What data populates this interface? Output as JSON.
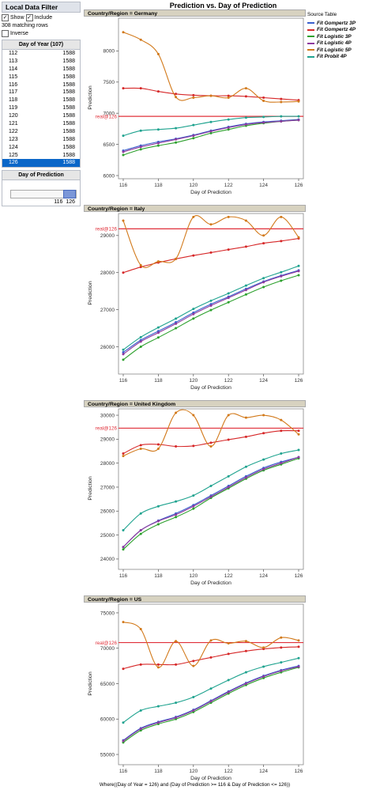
{
  "filter": {
    "title": "Local Data Filter",
    "show_label": "Show",
    "include_label": "Include",
    "matching": "308 matching rows",
    "inverse_label": "Inverse",
    "day_header": "Day of Year (107)",
    "days": [
      {
        "day": "112",
        "count": "1588"
      },
      {
        "day": "113",
        "count": "1588"
      },
      {
        "day": "114",
        "count": "1588"
      },
      {
        "day": "115",
        "count": "1588"
      },
      {
        "day": "116",
        "count": "1588"
      },
      {
        "day": "117",
        "count": "1588"
      },
      {
        "day": "118",
        "count": "1588"
      },
      {
        "day": "119",
        "count": "1588"
      },
      {
        "day": "120",
        "count": "1588"
      },
      {
        "day": "121",
        "count": "1588"
      },
      {
        "day": "122",
        "count": "1588"
      },
      {
        "day": "123",
        "count": "1588"
      },
      {
        "day": "124",
        "count": "1588"
      },
      {
        "day": "125",
        "count": "1588"
      },
      {
        "day": "126",
        "count": "1588"
      }
    ],
    "selected_day": "126",
    "prediction_header": "Day of Prediction",
    "slider_min": "116",
    "slider_max": "126"
  },
  "title": "Prediction vs. Day of Prediction",
  "legend": {
    "title": "Source Table",
    "items": [
      {
        "name": "Fit Gompertz 3P",
        "color": "#3a5fcd"
      },
      {
        "name": "Fit Gompertz 4P",
        "color": "#d62728"
      },
      {
        "name": "Fit Logistic 3P",
        "color": "#2ca02c"
      },
      {
        "name": "Fit Logistic 4P",
        "color": "#8e3a9e"
      },
      {
        "name": "Fit Logistic 5P",
        "color": "#d2791a"
      },
      {
        "name": "Fit Probit 4P",
        "color": "#1fa38f"
      }
    ]
  },
  "ref_label": "real@126",
  "xlabel": "Day of Prediction",
  "ylabel": "Prediction",
  "footer": "Where((Day of Year = 126) and (Day of Prediction >= 116 & Day of Prediction <= 126))",
  "chart_data": [
    {
      "type": "line",
      "panel": "Country/Region = Germany",
      "x": [
        116,
        117,
        118,
        119,
        120,
        121,
        122,
        123,
        124,
        125,
        126
      ],
      "xticks": [
        116,
        118,
        120,
        122,
        124,
        126
      ],
      "ylim": [
        6000,
        8500
      ],
      "yticks": [
        6000,
        6500,
        7000,
        7500,
        8000
      ],
      "ref": 6950,
      "series": [
        {
          "name": "Fit Gompertz 3P",
          "values": [
            6400,
            6480,
            6540,
            6590,
            6650,
            6720,
            6780,
            6830,
            6860,
            6880,
            6900
          ]
        },
        {
          "name": "Fit Gompertz 4P",
          "values": [
            7400,
            7400,
            7350,
            7310,
            7290,
            7280,
            7280,
            7270,
            7250,
            7230,
            7210
          ]
        },
        {
          "name": "Fit Logistic 3P",
          "values": [
            6330,
            6420,
            6480,
            6530,
            6600,
            6680,
            6740,
            6800,
            6840,
            6870,
            6890
          ]
        },
        {
          "name": "Fit Logistic 4P",
          "values": [
            6380,
            6460,
            6520,
            6580,
            6640,
            6710,
            6770,
            6820,
            6850,
            6870,
            6890
          ]
        },
        {
          "name": "Fit Logistic 5P",
          "values": [
            8300,
            8180,
            7950,
            7260,
            7250,
            7280,
            7250,
            7400,
            7200,
            7180,
            7190
          ]
        },
        {
          "name": "Fit Probit 4P",
          "values": [
            6640,
            6720,
            6740,
            6760,
            6810,
            6860,
            6900,
            6930,
            6940,
            6950,
            6950
          ]
        }
      ]
    },
    {
      "type": "line",
      "panel": "Country/Region = Italy",
      "x": [
        116,
        117,
        118,
        119,
        120,
        121,
        122,
        123,
        124,
        125,
        126
      ],
      "xticks": [
        116,
        118,
        120,
        122,
        124,
        126
      ],
      "ylim": [
        25350,
        29550
      ],
      "yticks": [
        26000,
        27000,
        28000,
        29000
      ],
      "ref": 29180,
      "series": [
        {
          "name": "Fit Gompertz 3P",
          "values": [
            25850,
            26180,
            26420,
            26660,
            26920,
            27150,
            27350,
            27560,
            27760,
            27920,
            28060
          ]
        },
        {
          "name": "Fit Gompertz 4P",
          "values": [
            28000,
            28150,
            28270,
            28370,
            28460,
            28540,
            28620,
            28700,
            28790,
            28850,
            28920
          ]
        },
        {
          "name": "Fit Logistic 3P",
          "values": [
            25650,
            26000,
            26250,
            26500,
            26760,
            26990,
            27200,
            27410,
            27610,
            27780,
            27930
          ]
        },
        {
          "name": "Fit Logistic 4P",
          "values": [
            25800,
            26140,
            26380,
            26620,
            26880,
            27110,
            27320,
            27530,
            27740,
            27900,
            28040
          ]
        },
        {
          "name": "Fit Logistic 5P",
          "values": [
            29400,
            28200,
            28300,
            28370,
            29500,
            29300,
            29500,
            29400,
            29000,
            29500,
            28950
          ]
        },
        {
          "name": "Fit Probit 4P",
          "values": [
            25920,
            26260,
            26520,
            26760,
            27020,
            27240,
            27440,
            27650,
            27850,
            28010,
            28180
          ]
        }
      ]
    },
    {
      "type": "line",
      "panel": "Country/Region = United Kingdom",
      "x": [
        116,
        117,
        118,
        119,
        120,
        121,
        122,
        123,
        124,
        125,
        126
      ],
      "xticks": [
        116,
        118,
        120,
        122,
        124,
        126
      ],
      "ylim": [
        23700,
        30200
      ],
      "yticks": [
        24000,
        25000,
        26000,
        27000,
        28000,
        29000,
        30000
      ],
      "ref": 29460,
      "series": [
        {
          "name": "Fit Gompertz 3P",
          "values": [
            24500,
            25200,
            25600,
            25900,
            26250,
            26650,
            27050,
            27450,
            27800,
            28050,
            28250
          ]
        },
        {
          "name": "Fit Gompertz 4P",
          "values": [
            28400,
            28750,
            28780,
            28700,
            28720,
            28850,
            28980,
            29100,
            29250,
            29350,
            29350
          ]
        },
        {
          "name": "Fit Logistic 3P",
          "values": [
            24400,
            25050,
            25450,
            25750,
            26100,
            26550,
            26950,
            27350,
            27700,
            27950,
            28200
          ]
        },
        {
          "name": "Fit Logistic 4P",
          "values": [
            24500,
            25200,
            25580,
            25850,
            26200,
            26600,
            27000,
            27400,
            27750,
            28000,
            28250
          ]
        },
        {
          "name": "Fit Logistic 5P",
          "values": [
            28300,
            28600,
            28600,
            30100,
            30000,
            28700,
            30000,
            29900,
            30000,
            29800,
            29200
          ]
        },
        {
          "name": "Fit Probit 4P",
          "values": [
            25200,
            25900,
            26200,
            26400,
            26650,
            27050,
            27450,
            27850,
            28150,
            28400,
            28550
          ]
        }
      ]
    },
    {
      "type": "line",
      "panel": "Country/Region = US",
      "x": [
        116,
        117,
        118,
        119,
        120,
        121,
        122,
        123,
        124,
        125,
        126
      ],
      "xticks": [
        116,
        118,
        120,
        122,
        124,
        126
      ],
      "ylim": [
        54000,
        76000
      ],
      "yticks": [
        55000,
        60000,
        65000,
        70000,
        75000
      ],
      "ref": 70800,
      "series": [
        {
          "name": "Fit Gompertz 3P",
          "values": [
            57000,
            58700,
            59600,
            60300,
            61300,
            62600,
            63900,
            65100,
            66100,
            66900,
            67500
          ]
        },
        {
          "name": "Fit Gompertz 4P",
          "values": [
            67100,
            67700,
            67700,
            67700,
            68200,
            68700,
            69200,
            69600,
            69900,
            70100,
            70200
          ]
        },
        {
          "name": "Fit Logistic 3P",
          "values": [
            56700,
            58400,
            59300,
            60000,
            61000,
            62300,
            63600,
            64800,
            65800,
            66600,
            67300
          ]
        },
        {
          "name": "Fit Logistic 4P",
          "values": [
            56900,
            58600,
            59500,
            60200,
            61200,
            62500,
            63800,
            65000,
            66000,
            66800,
            67400
          ]
        },
        {
          "name": "Fit Logistic 5P",
          "values": [
            73700,
            72700,
            67300,
            71000,
            67500,
            71100,
            70700,
            71000,
            70100,
            71500,
            71100
          ]
        },
        {
          "name": "Fit Probit 4P",
          "values": [
            59500,
            61200,
            61800,
            62300,
            63100,
            64300,
            65500,
            66600,
            67400,
            68000,
            68600
          ]
        }
      ]
    }
  ]
}
